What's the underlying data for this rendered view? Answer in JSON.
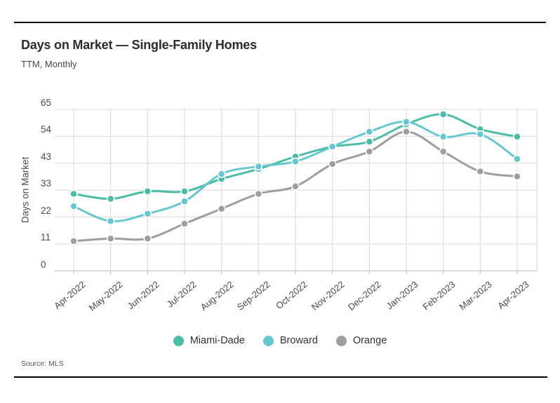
{
  "header": {
    "title": "Days on Market — Single-Family Homes",
    "subtitle": "TTM, Monthly"
  },
  "source_label": "Source: MLS",
  "colors": {
    "miami_dade": "#4CBCA6",
    "broward": "#67C6CE",
    "orange": "#9E9E9E",
    "gridline": "#d9d9d9",
    "axis_line": "#bfbfbf",
    "rule": "#000000"
  },
  "chart_data": {
    "type": "line",
    "title": "Days on Market — Single-Family Homes",
    "subtitle": "TTM, Monthly",
    "xlabel": "",
    "ylabel": "Days on Market",
    "ylim": [
      0,
      65
    ],
    "grid": true,
    "legend_position": "bottom",
    "y_tick_labels": [
      "65",
      "54",
      "43",
      "33",
      "22",
      "11",
      "0"
    ],
    "x": [
      "Apr-2022",
      "May-2022",
      "Jun-2022",
      "Jul-2022",
      "Aug-2022",
      "Sep-2022",
      "Oct-2022",
      "Nov-2022",
      "Dec-2022",
      "Jan-2023",
      "Feb-2023",
      "Mar-2023",
      "Apr-2023"
    ],
    "series": [
      {
        "name": "Miami-Dade",
        "color": "#4CBCA6",
        "values": [
          31,
          29,
          32,
          32,
          37,
          41,
          46,
          50,
          52,
          59,
          63,
          57,
          54
        ]
      },
      {
        "name": "Broward",
        "color": "#67C6CE",
        "values": [
          26,
          20,
          23,
          28,
          39,
          42,
          44,
          50,
          56,
          60,
          54,
          55,
          45
        ]
      },
      {
        "name": "Orange",
        "color": "#9E9E9E",
        "values": [
          12,
          13,
          13,
          19,
          25,
          31,
          34,
          43,
          48,
          56,
          48,
          40,
          38
        ]
      }
    ]
  }
}
